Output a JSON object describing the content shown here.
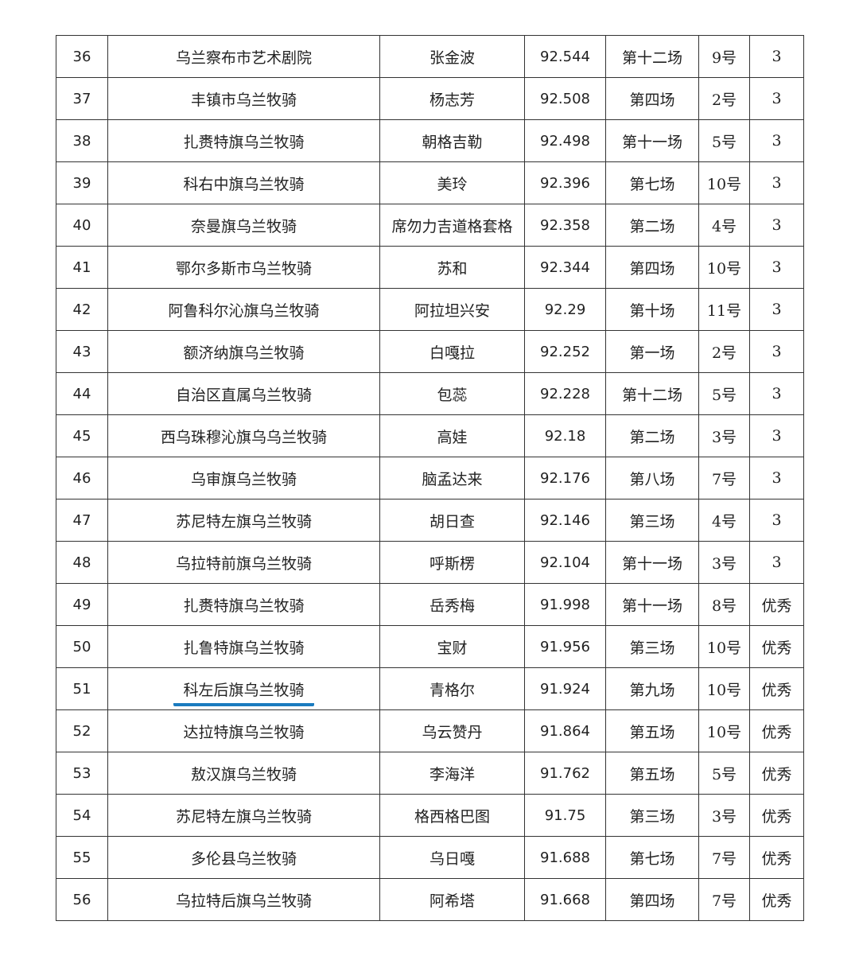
{
  "accent_underline_color": "#1a7bbf",
  "rows": [
    {
      "rank": "36",
      "org": "乌兰察布市艺术剧院",
      "name": "张金波",
      "score": "92.544",
      "session": "第十二场",
      "slot": "9号",
      "grade": "3"
    },
    {
      "rank": "37",
      "org": "丰镇市乌兰牧骑",
      "name": "杨志芳",
      "score": "92.508",
      "session": "第四场",
      "slot": "2号",
      "grade": "3"
    },
    {
      "rank": "38",
      "org": "扎赉特旗乌兰牧骑",
      "name": "朝格吉勒",
      "score": "92.498",
      "session": "第十一场",
      "slot": "5号",
      "grade": "3"
    },
    {
      "rank": "39",
      "org": "科右中旗乌兰牧骑",
      "name": "美玲",
      "score": "92.396",
      "session": "第七场",
      "slot": "10号",
      "grade": "3"
    },
    {
      "rank": "40",
      "org": "奈曼旗乌兰牧骑",
      "name": "席勿力吉道格套格",
      "score": "92.358",
      "session": "第二场",
      "slot": "4号",
      "grade": "3"
    },
    {
      "rank": "41",
      "org": "鄂尔多斯市乌兰牧骑",
      "name": "苏和",
      "score": "92.344",
      "session": "第四场",
      "slot": "10号",
      "grade": "3"
    },
    {
      "rank": "42",
      "org": "阿鲁科尔沁旗乌兰牧骑",
      "name": "阿拉坦兴安",
      "score": "92.29",
      "session": "第十场",
      "slot": "11号",
      "grade": "3"
    },
    {
      "rank": "43",
      "org": "额济纳旗乌兰牧骑",
      "name": "白嘎拉",
      "score": "92.252",
      "session": "第一场",
      "slot": "2号",
      "grade": "3"
    },
    {
      "rank": "44",
      "org": "自治区直属乌兰牧骑",
      "name": "包蕊",
      "score": "92.228",
      "session": "第十二场",
      "slot": "5号",
      "grade": "3"
    },
    {
      "rank": "45",
      "org": "西乌珠穆沁旗乌乌兰牧骑",
      "name": "高娃",
      "score": "92.18",
      "session": "第二场",
      "slot": "3号",
      "grade": "3"
    },
    {
      "rank": "46",
      "org": "乌审旗乌兰牧骑",
      "name": "脑孟达来",
      "score": "92.176",
      "session": "第八场",
      "slot": "7号",
      "grade": "3"
    },
    {
      "rank": "47",
      "org": "苏尼特左旗乌兰牧骑",
      "name": "胡日查",
      "score": "92.146",
      "session": "第三场",
      "slot": "4号",
      "grade": "3"
    },
    {
      "rank": "48",
      "org": "乌拉特前旗乌兰牧骑",
      "name": "呼斯楞",
      "score": "92.104",
      "session": "第十一场",
      "slot": "3号",
      "grade": "3"
    },
    {
      "rank": "49",
      "org": "扎赉特旗乌兰牧骑",
      "name": "岳秀梅",
      "score": "91.998",
      "session": "第十一场",
      "slot": "8号",
      "grade": "优秀"
    },
    {
      "rank": "50",
      "org": "扎鲁特旗乌兰牧骑",
      "name": "宝财",
      "score": "91.956",
      "session": "第三场",
      "slot": "10号",
      "grade": "优秀"
    },
    {
      "rank": "51",
      "org": "科左后旗乌兰牧骑",
      "name": "青格尔",
      "score": "91.924",
      "session": "第九场",
      "slot": "10号",
      "grade": "优秀",
      "highlighted": true
    },
    {
      "rank": "52",
      "org": "达拉特旗乌兰牧骑",
      "name": "乌云赞丹",
      "score": "91.864",
      "session": "第五场",
      "slot": "10号",
      "grade": "优秀"
    },
    {
      "rank": "53",
      "org": "敖汉旗乌兰牧骑",
      "name": "李海洋",
      "score": "91.762",
      "session": "第五场",
      "slot": "5号",
      "grade": "优秀"
    },
    {
      "rank": "54",
      "org": "苏尼特左旗乌兰牧骑",
      "name": "格西格巴图",
      "score": "91.75",
      "session": "第三场",
      "slot": "3号",
      "grade": "优秀"
    },
    {
      "rank": "55",
      "org": "多伦县乌兰牧骑",
      "name": "乌日嘎",
      "score": "91.688",
      "session": "第七场",
      "slot": "7号",
      "grade": "优秀"
    },
    {
      "rank": "56",
      "org": "乌拉特后旗乌兰牧骑",
      "name": "阿希塔",
      "score": "91.668",
      "session": "第四场",
      "slot": "7号",
      "grade": "优秀"
    }
  ]
}
